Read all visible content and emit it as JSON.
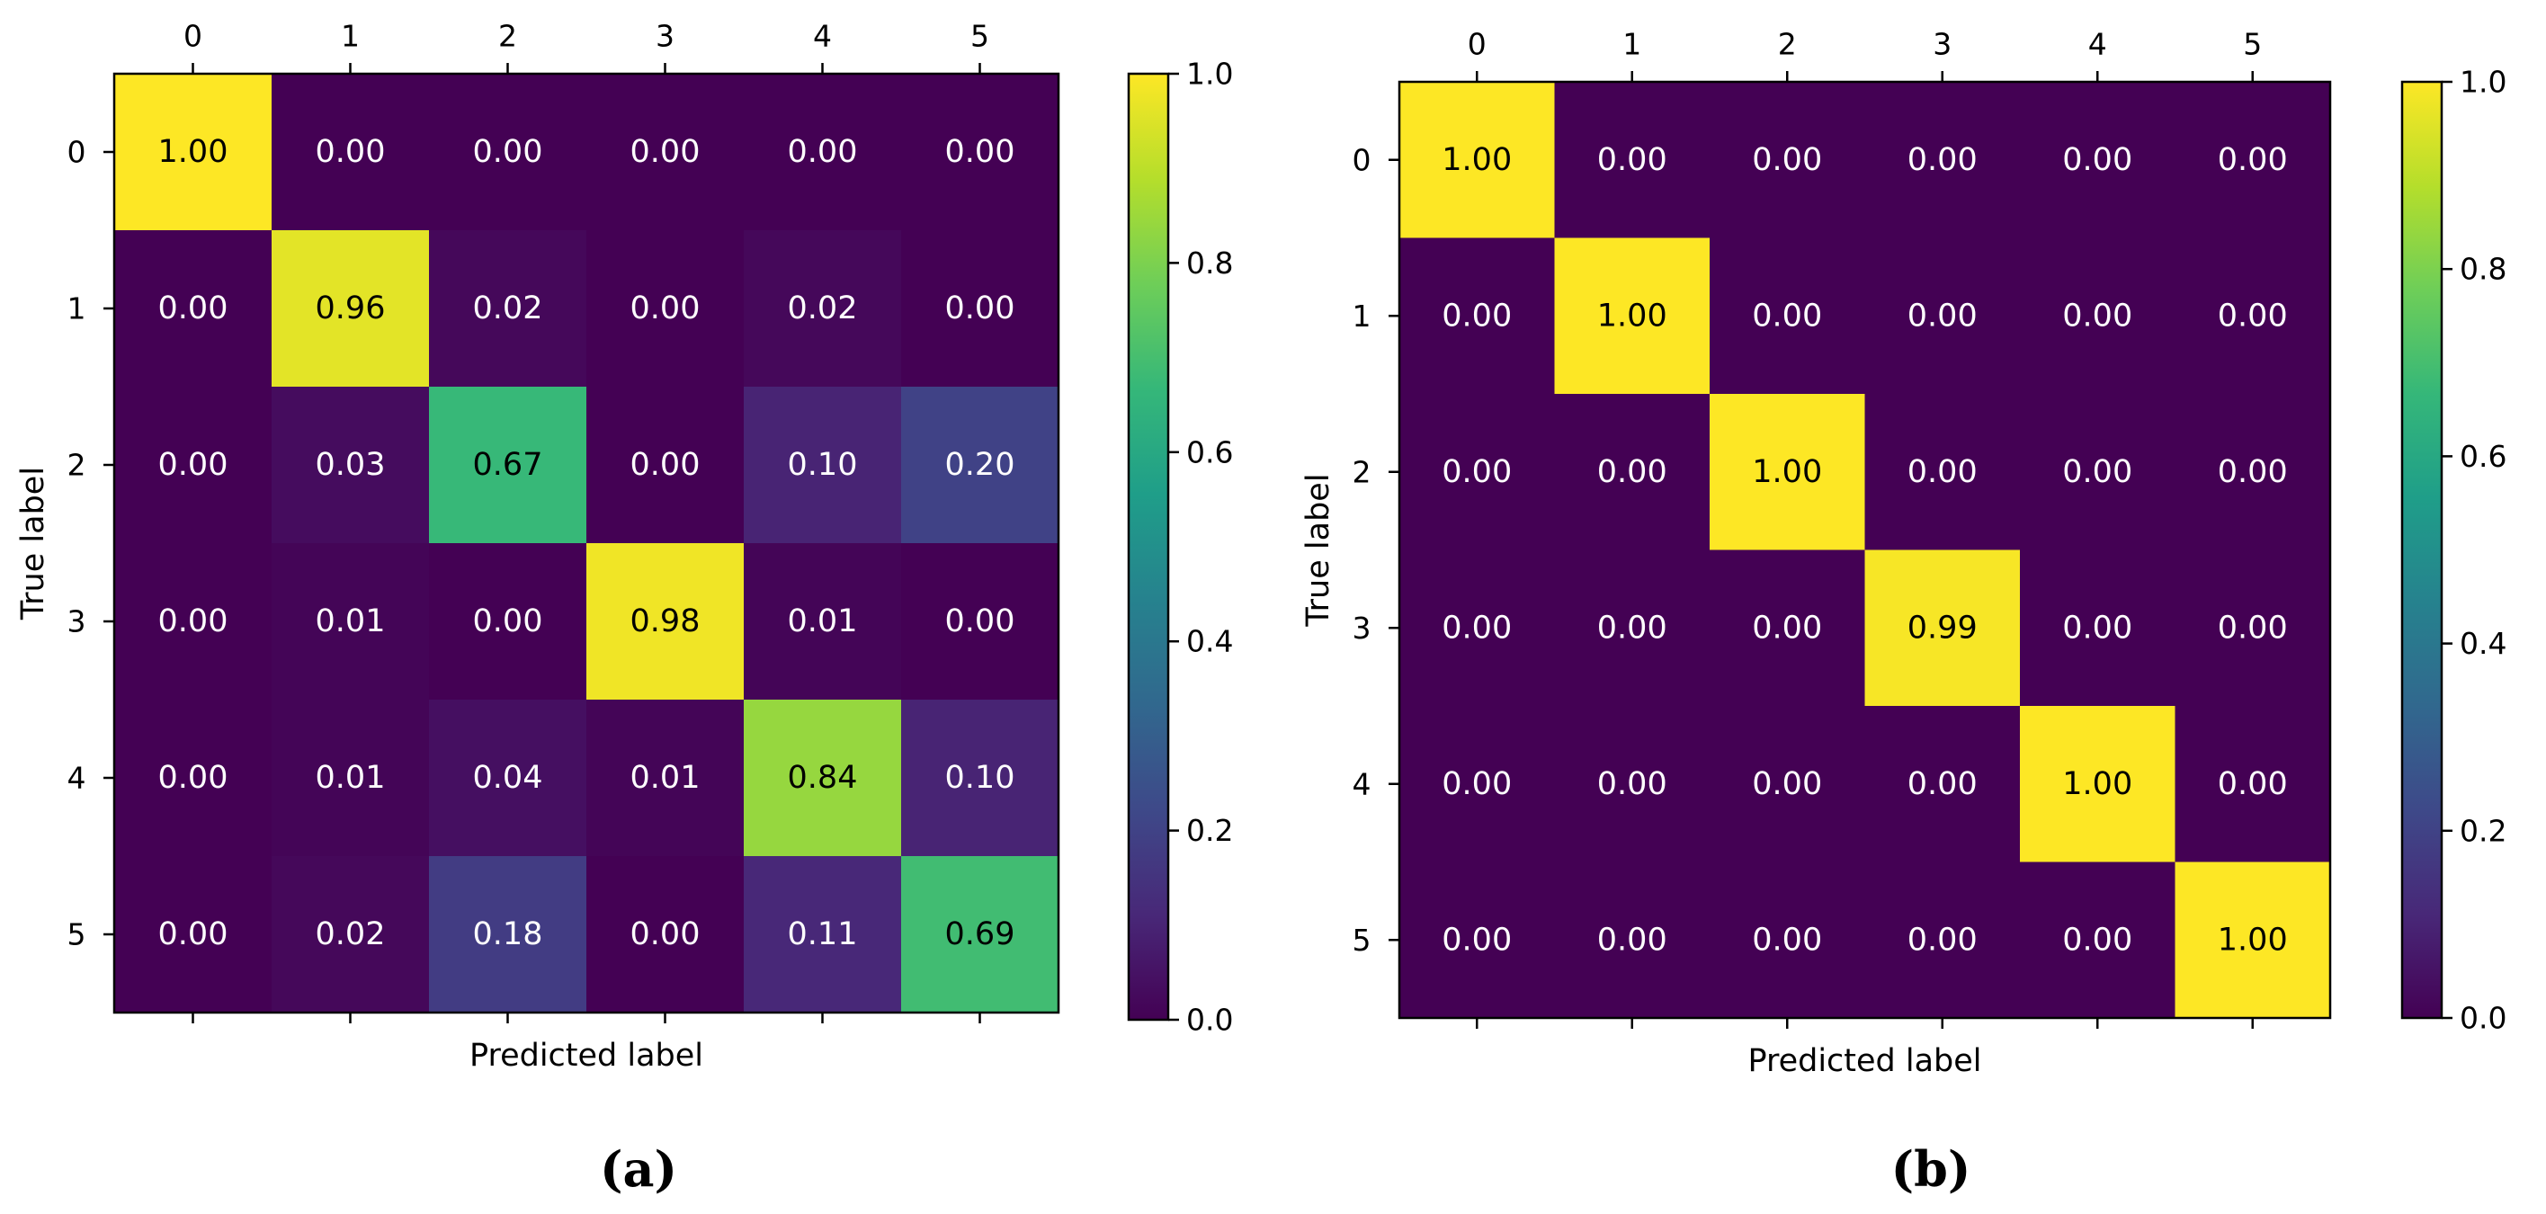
{
  "colors": {
    "viridis": [
      "#440154",
      "#482878",
      "#3e4989",
      "#31688e",
      "#26828e",
      "#1f9e89",
      "#35b779",
      "#6ece58",
      "#b5de2b",
      "#fde725"
    ],
    "text_light": "#ffffff",
    "text_dark": "#000000",
    "axis": "#000000"
  },
  "chart_data": [
    {
      "type": "heatmap",
      "caption": "(a)",
      "xlabel": "Predicted label",
      "ylabel": "True label",
      "x_ticks": [
        "0",
        "1",
        "2",
        "3",
        "4",
        "5"
      ],
      "y_ticks": [
        "0",
        "1",
        "2",
        "3",
        "4",
        "5"
      ],
      "values": [
        [
          1.0,
          0.0,
          0.0,
          0.0,
          0.0,
          0.0
        ],
        [
          0.0,
          0.96,
          0.02,
          0.0,
          0.02,
          0.0
        ],
        [
          0.0,
          0.03,
          0.67,
          0.0,
          0.1,
          0.2
        ],
        [
          0.0,
          0.01,
          0.0,
          0.98,
          0.01,
          0.0
        ],
        [
          0.0,
          0.01,
          0.04,
          0.01,
          0.84,
          0.1
        ],
        [
          0.0,
          0.02,
          0.18,
          0.0,
          0.11,
          0.69
        ]
      ],
      "labels": [
        [
          "1.00",
          "0.00",
          "0.00",
          "0.00",
          "0.00",
          "0.00"
        ],
        [
          "0.00",
          "0.96",
          "0.02",
          "0.00",
          "0.02",
          "0.00"
        ],
        [
          "0.00",
          "0.03",
          "0.67",
          "0.00",
          "0.10",
          "0.20"
        ],
        [
          "0.00",
          "0.01",
          "0.00",
          "0.98",
          "0.01",
          "0.00"
        ],
        [
          "0.00",
          "0.01",
          "0.04",
          "0.01",
          "0.84",
          "0.10"
        ],
        [
          "0.00",
          "0.02",
          "0.18",
          "0.00",
          "0.11",
          "0.69"
        ]
      ],
      "colorbar": {
        "range": [
          0.0,
          1.0
        ],
        "ticks": [
          0.0,
          0.2,
          0.4,
          0.6,
          0.8,
          1.0
        ],
        "tick_labels": [
          "0.0",
          "0.2",
          "0.4",
          "0.6",
          "0.8",
          "1.0"
        ]
      }
    },
    {
      "type": "heatmap",
      "caption": "(b)",
      "xlabel": "Predicted label",
      "ylabel": "True label",
      "x_ticks": [
        "0",
        "1",
        "2",
        "3",
        "4",
        "5"
      ],
      "y_ticks": [
        "0",
        "1",
        "2",
        "3",
        "4",
        "5"
      ],
      "values": [
        [
          1.0,
          0.0,
          0.0,
          0.0,
          0.0,
          0.0
        ],
        [
          0.0,
          1.0,
          0.0,
          0.0,
          0.0,
          0.0
        ],
        [
          0.0,
          0.0,
          1.0,
          0.0,
          0.0,
          0.0
        ],
        [
          0.0,
          0.0,
          0.0,
          0.99,
          0.0,
          0.0
        ],
        [
          0.0,
          0.0,
          0.0,
          0.0,
          1.0,
          0.0
        ],
        [
          0.0,
          0.0,
          0.0,
          0.0,
          0.0,
          1.0
        ]
      ],
      "labels": [
        [
          "1.00",
          "0.00",
          "0.00",
          "0.00",
          "0.00",
          "0.00"
        ],
        [
          "0.00",
          "1.00",
          "0.00",
          "0.00",
          "0.00",
          "0.00"
        ],
        [
          "0.00",
          "0.00",
          "1.00",
          "0.00",
          "0.00",
          "0.00"
        ],
        [
          "0.00",
          "0.00",
          "0.00",
          "0.99",
          "0.00",
          "0.00"
        ],
        [
          "0.00",
          "0.00",
          "0.00",
          "0.00",
          "1.00",
          "0.00"
        ],
        [
          "0.00",
          "0.00",
          "0.00",
          "0.00",
          "0.00",
          "1.00"
        ]
      ],
      "colorbar": {
        "range": [
          0.0,
          1.0
        ],
        "ticks": [
          0.0,
          0.2,
          0.4,
          0.6,
          0.8,
          1.0
        ],
        "tick_labels": [
          "0.0",
          "0.2",
          "0.4",
          "0.6",
          "0.8",
          "1.0"
        ]
      }
    }
  ]
}
